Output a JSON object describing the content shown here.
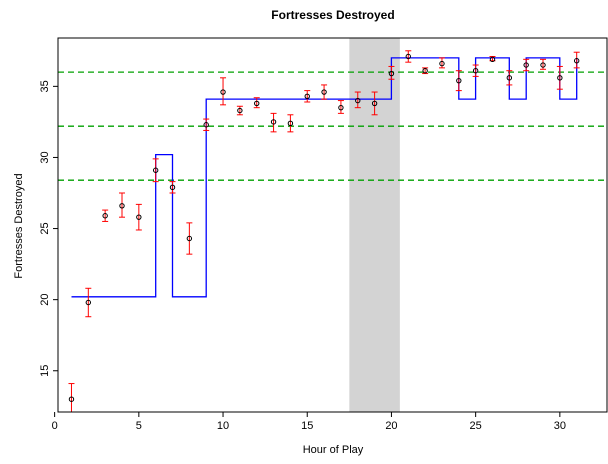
{
  "chart_data": {
    "type": "scatter",
    "title": "Fortresses Destroyed",
    "xlabel": "Hour of Play",
    "ylabel": "Fortresses Destroyed",
    "xlim": [
      0.2,
      32.8
    ],
    "ylim": [
      12.1,
      38.4
    ],
    "x_ticks": [
      0,
      5,
      10,
      15,
      20,
      25,
      30
    ],
    "y_ticks": [
      15,
      20,
      25,
      30,
      35
    ],
    "grid": false,
    "shaded_region": {
      "x": [
        17.5,
        20.5
      ],
      "color": "#d3d3d3"
    },
    "reference_lines": [
      {
        "y": 36.0,
        "color": "#00a000",
        "style": "dashed"
      },
      {
        "y": 32.2,
        "color": "#00a000",
        "style": "dashed"
      },
      {
        "y": 28.4,
        "color": "#00a000",
        "style": "dashed"
      }
    ],
    "colors": {
      "step_line": "#0000ff",
      "error_bars": "#ff0000",
      "points": "#000000"
    },
    "points": [
      {
        "x": 1,
        "y": 13.0,
        "lo": 12.1,
        "hi": 14.1
      },
      {
        "x": 2,
        "y": 19.8,
        "lo": 18.8,
        "hi": 20.8
      },
      {
        "x": 3,
        "y": 25.9,
        "lo": 25.5,
        "hi": 26.3
      },
      {
        "x": 4,
        "y": 26.6,
        "lo": 25.8,
        "hi": 27.5
      },
      {
        "x": 5,
        "y": 25.8,
        "lo": 24.9,
        "hi": 26.7
      },
      {
        "x": 6,
        "y": 29.1,
        "lo": 28.3,
        "hi": 29.9
      },
      {
        "x": 7,
        "y": 27.9,
        "lo": 27.5,
        "hi": 28.3
      },
      {
        "x": 8,
        "y": 24.3,
        "lo": 23.2,
        "hi": 25.4
      },
      {
        "x": 9,
        "y": 32.3,
        "lo": 31.9,
        "hi": 32.7
      },
      {
        "x": 10,
        "y": 34.6,
        "lo": 33.7,
        "hi": 35.6
      },
      {
        "x": 11,
        "y": 33.3,
        "lo": 33.0,
        "hi": 33.6
      },
      {
        "x": 12,
        "y": 33.8,
        "lo": 33.5,
        "hi": 34.2
      },
      {
        "x": 13,
        "y": 32.5,
        "lo": 31.8,
        "hi": 33.1
      },
      {
        "x": 14,
        "y": 32.4,
        "lo": 31.8,
        "hi": 33.0
      },
      {
        "x": 15,
        "y": 34.3,
        "lo": 33.9,
        "hi": 34.7
      },
      {
        "x": 16,
        "y": 34.6,
        "lo": 34.1,
        "hi": 35.1
      },
      {
        "x": 17,
        "y": 33.5,
        "lo": 33.1,
        "hi": 34.0
      },
      {
        "x": 18,
        "y": 34.0,
        "lo": 33.5,
        "hi": 34.6
      },
      {
        "x": 19,
        "y": 33.8,
        "lo": 33.0,
        "hi": 34.6
      },
      {
        "x": 20,
        "y": 35.9,
        "lo": 35.5,
        "hi": 36.4
      },
      {
        "x": 21,
        "y": 37.1,
        "lo": 36.7,
        "hi": 37.5
      },
      {
        "x": 22,
        "y": 36.1,
        "lo": 35.9,
        "hi": 36.3
      },
      {
        "x": 23,
        "y": 36.6,
        "lo": 36.3,
        "hi": 37.0
      },
      {
        "x": 24,
        "y": 35.4,
        "lo": 34.7,
        "hi": 36.1
      },
      {
        "x": 25,
        "y": 36.1,
        "lo": 35.7,
        "hi": 36.5
      },
      {
        "x": 26,
        "y": 36.9,
        "lo": 36.8,
        "hi": 37.1
      },
      {
        "x": 27,
        "y": 35.6,
        "lo": 35.1,
        "hi": 36.1
      },
      {
        "x": 28,
        "y": 36.5,
        "lo": 36.1,
        "hi": 36.9
      },
      {
        "x": 29,
        "y": 36.5,
        "lo": 36.2,
        "hi": 36.9
      },
      {
        "x": 30,
        "y": 35.6,
        "lo": 34.8,
        "hi": 36.4
      },
      {
        "x": 31,
        "y": 36.8,
        "lo": 36.3,
        "hi": 37.4
      }
    ],
    "step_line": [
      [
        1,
        20.2
      ],
      [
        6,
        20.2
      ],
      [
        6,
        30.2
      ],
      [
        7,
        30.2
      ],
      [
        7,
        20.2
      ],
      [
        9,
        20.2
      ],
      [
        9,
        34.1
      ],
      [
        20,
        34.1
      ],
      [
        20,
        37.0
      ],
      [
        24,
        37.0
      ],
      [
        24,
        34.1
      ],
      [
        25,
        34.1
      ],
      [
        25,
        37.0
      ],
      [
        27,
        37.0
      ],
      [
        27,
        34.1
      ],
      [
        28,
        34.1
      ],
      [
        28,
        37.0
      ],
      [
        30,
        37.0
      ],
      [
        30,
        34.1
      ],
      [
        31,
        34.1
      ],
      [
        31,
        37.0
      ]
    ]
  }
}
